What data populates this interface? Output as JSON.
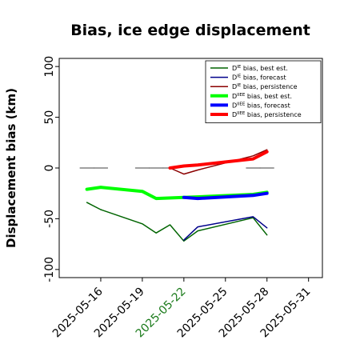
{
  "chart_data": {
    "type": "line",
    "title": "Bias, ice edge displacement",
    "xlabel": "",
    "ylabel": "Displacement bias (km)",
    "ylim": [
      -108,
      108
    ],
    "xlim_days": [
      "2025-05-13",
      "2025-06-01"
    ],
    "x_ticks": [
      "2025-05-16",
      "2025-05-19",
      "2025-05-22",
      "2025-05-25",
      "2025-05-28",
      "2025-05-31"
    ],
    "highlight_tick": "2025-05-22",
    "highlight_color": "#1a7a1a",
    "y_ticks": [
      100,
      50,
      0,
      -50,
      -100
    ],
    "grid": false,
    "legend_position": "top-right",
    "series": [
      {
        "name": "D^IE bias, best est.",
        "label_base": "D",
        "label_sup": "IE",
        "label_rest": " bias, best est.",
        "color": "#006400",
        "width": 1.5,
        "points": [
          [
            "2025-05-15",
            -34
          ],
          [
            "2025-05-16",
            -41
          ],
          [
            "2025-05-19",
            -55
          ],
          [
            "2025-05-20",
            -64
          ],
          [
            "2025-05-21",
            -56
          ],
          [
            "2025-05-22",
            -72
          ],
          [
            "2025-05-23",
            -62
          ],
          [
            "2025-05-27",
            -49
          ],
          [
            "2025-05-28",
            -66
          ]
        ]
      },
      {
        "name": "D^IE bias, forecast",
        "label_base": "D",
        "label_sup": "IE",
        "label_rest": " bias, forecast",
        "color": "#00008b",
        "width": 1.5,
        "points": [
          [
            "2025-05-22",
            -71
          ],
          [
            "2025-05-23",
            -58
          ],
          [
            "2025-05-27",
            -48
          ],
          [
            "2025-05-28",
            -59
          ]
        ]
      },
      {
        "name": "D^IE bias, persistence",
        "label_base": "D",
        "label_sup": "IE",
        "label_rest": " bias, persistence",
        "color": "#8b0000",
        "width": 1.5,
        "points": [
          [
            "2025-05-21",
            0
          ],
          [
            "2025-05-22",
            -6
          ],
          [
            "2025-05-23",
            -2
          ],
          [
            "2025-05-27",
            12
          ],
          [
            "2025-05-28",
            18
          ]
        ]
      },
      {
        "name": "D^IIEE bias, best est.",
        "label_base": "D",
        "label_sup": "IIEE",
        "label_rest": " bias, best est.",
        "color": "#00ff00",
        "width": 4,
        "points": [
          [
            "2025-05-15",
            -21
          ],
          [
            "2025-05-16",
            -19
          ],
          [
            "2025-05-19",
            -23
          ],
          [
            "2025-05-20",
            -30
          ],
          [
            "2025-05-22",
            -29
          ],
          [
            "2025-05-27",
            -26
          ],
          [
            "2025-05-28",
            -24
          ]
        ]
      },
      {
        "name": "D^IIEE bias, forecast",
        "label_base": "D",
        "label_sup": "IIEE",
        "label_rest": " bias, forecast",
        "color": "#0000ff",
        "width": 4,
        "points": [
          [
            "2025-05-22",
            -29
          ],
          [
            "2025-05-23",
            -30
          ],
          [
            "2025-05-27",
            -27
          ],
          [
            "2025-05-28",
            -25
          ]
        ]
      },
      {
        "name": "D^IIEE bias, persistence",
        "label_base": "D",
        "label_sup": "IIEE",
        "label_rest": " bias, persistence",
        "color": "#ff0000",
        "width": 4,
        "points": [
          [
            "2025-05-21",
            0
          ],
          [
            "2025-05-22",
            2
          ],
          [
            "2025-05-23",
            3
          ],
          [
            "2025-05-27",
            9
          ],
          [
            "2025-05-28",
            16
          ]
        ]
      }
    ],
    "zero_markers": {
      "color": "#808080",
      "dates": [
        "2025-05-15",
        "2025-05-16",
        "2025-05-19",
        "2025-05-20",
        "2025-05-21",
        "2025-05-27",
        "2025-05-28"
      ]
    }
  }
}
